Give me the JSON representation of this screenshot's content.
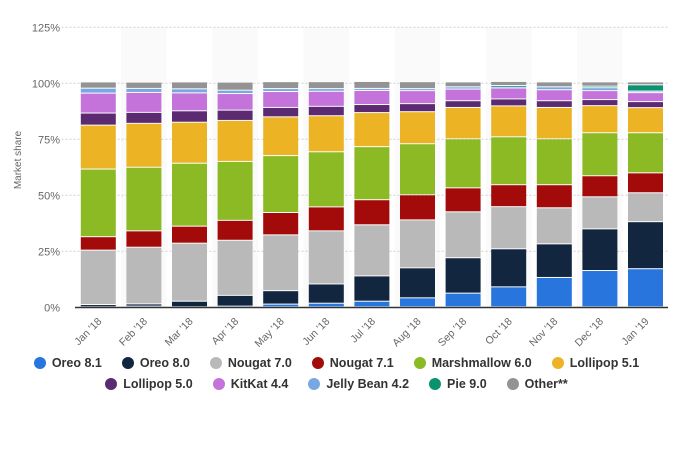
{
  "chart_data": {
    "type": "bar",
    "stacked": true,
    "ylabel": "Market share",
    "ylim": [
      0,
      125
    ],
    "yticks": [
      "0%",
      "25%",
      "50%",
      "75%",
      "100%",
      "125%"
    ],
    "grid": true,
    "legend_position": "bottom",
    "categories": [
      "Jan '18",
      "Feb '18",
      "Mar '18",
      "Apr '18",
      "May '18",
      "Jun '18",
      "Jul '18",
      "Aug '18",
      "Sep '18",
      "Oct '18",
      "Nov '18",
      "Dec '18",
      "Jan '19"
    ],
    "series": [
      {
        "name": "Oreo 8.1",
        "color": "#2876dd",
        "values": [
          0,
          0.3,
          0,
          0.3,
          1.2,
          1.6,
          2.5,
          4.0,
          6.1,
          8.9,
          13.1,
          16.2,
          17.0
        ]
      },
      {
        "name": "Oreo 8.0",
        "color": "#12263f",
        "values": [
          1.0,
          1.0,
          2.5,
          4.8,
          6.0,
          8.6,
          11.3,
          13.4,
          15.8,
          17.0,
          15.0,
          18.6,
          21.0
        ]
      },
      {
        "name": "Nougat 7.0",
        "color": "#b9b9b9",
        "values": [
          24.3,
          25.3,
          25.9,
          24.6,
          24.9,
          23.7,
          22.8,
          21.4,
          20.5,
          18.8,
          16.1,
          14.3,
          12.9
        ]
      },
      {
        "name": "Nougat 7.1",
        "color": "#a30b0b",
        "values": [
          6.0,
          7.3,
          7.6,
          8.9,
          10.0,
          10.7,
          11.2,
          11.2,
          10.7,
          9.8,
          10.3,
          9.4,
          8.9
        ]
      },
      {
        "name": "Marshmallow 6.0",
        "color": "#8bba25",
        "values": [
          30.2,
          28.4,
          28.1,
          26.3,
          25.4,
          24.6,
          23.7,
          22.8,
          21.9,
          21.4,
          20.5,
          19.2,
          17.9
        ]
      },
      {
        "name": "Lollipop 5.1",
        "color": "#ecb424",
        "values": [
          19.6,
          19.6,
          18.3,
          18.3,
          17.3,
          16.1,
          15.2,
          14.3,
          14.0,
          13.8,
          14.0,
          12.1,
          11.2
        ]
      },
      {
        "name": "Lollipop 5.0",
        "color": "#5b2a71",
        "values": [
          5.4,
          4.9,
          5.1,
          4.6,
          4.2,
          4.2,
          3.6,
          3.6,
          3.0,
          3.1,
          3.0,
          2.7,
          2.7
        ]
      },
      {
        "name": "KitKat 4.4",
        "color": "#c373da",
        "values": [
          8.9,
          8.9,
          8.0,
          7.4,
          7.1,
          6.7,
          6.3,
          5.8,
          5.2,
          4.9,
          4.9,
          4.0,
          4.0
        ]
      },
      {
        "name": "Jelly Bean 4.2",
        "color": "#78a8e2",
        "values": [
          2.2,
          1.8,
          1.8,
          1.5,
          1.3,
          1.2,
          0.9,
          0.9,
          1.0,
          0.9,
          1.3,
          1.3,
          0.7
        ]
      },
      {
        "name": "Pie 9.0",
        "color": "#0a9271",
        "values": [
          0,
          0,
          0,
          0,
          0,
          0,
          0,
          0,
          0,
          0.2,
          0,
          0.7,
          2.8
        ]
      },
      {
        "name": "Other**",
        "color": "#939393",
        "values": [
          2.8,
          2.8,
          3.1,
          3.6,
          3.1,
          3.1,
          3.1,
          3.1,
          2.2,
          1.8,
          2.2,
          1.9,
          1.3
        ]
      }
    ]
  }
}
